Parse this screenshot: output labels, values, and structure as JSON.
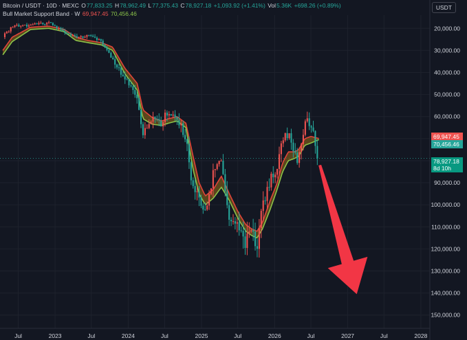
{
  "header": {
    "line1": {
      "symbol": "Bitcoin / USDT · 10D · MEXC",
      "o_label": "O",
      "o_value": "77,833.25",
      "h_label": "H",
      "h_value": "78,962.49",
      "l_label": "L",
      "l_value": "77,375.43",
      "c_label": "C",
      "c_value": "78,927.18",
      "change": "+1,093.92 (+1.41%)",
      "vol_label": "Vol",
      "vol_value": "5.36K",
      "vol_change": "+698.26 (+0.89%)"
    },
    "line2": {
      "indicator": "Bull Market Support Band · W",
      "value_1": "69,947.45",
      "value_2": "70,456.46"
    }
  },
  "currency_button": "USDT",
  "price_tags": {
    "band_upper": "69,947.45",
    "band_lower": "70,456.46",
    "last_price": "78,927.18",
    "countdown": "8d 10h"
  },
  "colors": {
    "background": "#131722",
    "up": "#26a69a",
    "down": "#ef5350",
    "band_red": "#e0443a",
    "band_green": "#8bc34a",
    "band_fill": "#7a5a1a",
    "arrow": "#f23645",
    "axis_text": "#d1d4dc"
  },
  "chart_data": {
    "type": "candlestick",
    "y_axis": {
      "scale": "inverted",
      "range": [
        14000,
        156000
      ],
      "ticks": [
        20000,
        30000,
        40000,
        50000,
        60000,
        70000,
        80000,
        90000,
        100000,
        110000,
        120000,
        130000,
        140000,
        150000
      ],
      "tick_labels": [
        "20,000.00",
        "30,000.00",
        "40,000.00",
        "50,000.00",
        "60,000.00",
        "70,000.00",
        "80,000.00",
        "90,000.00",
        "100,000.00",
        "110,000.00",
        "120,000.00",
        "130,000.00",
        "140,000.00",
        "150,000.00"
      ]
    },
    "x_axis": {
      "range": [
        "2022-04-01",
        "2028-02-15"
      ],
      "ticks": [
        "2022-07-01",
        "2023-01-01",
        "2023-07-01",
        "2024-01-01",
        "2024-07-01",
        "2025-01-01",
        "2025-07-01",
        "2026-01-01",
        "2026-07-01",
        "2027-01-01",
        "2027-07-01",
        "2028-01-01"
      ],
      "tick_labels": [
        "Jul",
        "2023",
        "Jul",
        "2024",
        "Jul",
        "2025",
        "Jul",
        "2026",
        "Jul",
        "2027",
        "Jul",
        "2028"
      ]
    },
    "price_keyframes": [
      [
        "2022-04-15",
        24000
      ],
      [
        "2022-06-01",
        19000
      ],
      [
        "2022-09-01",
        18500
      ],
      [
        "2022-12-01",
        17500
      ],
      [
        "2023-01-01",
        19000
      ],
      [
        "2023-02-15",
        21500
      ],
      [
        "2023-04-15",
        24500
      ],
      [
        "2023-06-15",
        23000
      ],
      [
        "2023-08-20",
        26000
      ],
      [
        "2023-10-15",
        34000
      ],
      [
        "2023-12-15",
        42500
      ],
      [
        "2024-02-15",
        52000
      ],
      [
        "2024-03-15",
        68000
      ],
      [
        "2024-05-01",
        60000
      ],
      [
        "2024-06-15",
        63000
      ],
      [
        "2024-07-20",
        57000
      ],
      [
        "2024-09-01",
        61000
      ],
      [
        "2024-10-15",
        69000
      ],
      [
        "2024-11-20",
        94000
      ],
      [
        "2024-12-20",
        96000
      ],
      [
        "2025-01-20",
        104000
      ],
      [
        "2025-03-01",
        85000
      ],
      [
        "2025-04-10",
        79000
      ],
      [
        "2025-05-20",
        106000
      ],
      [
        "2025-07-01",
        108000
      ],
      [
        "2025-08-10",
        118000
      ],
      [
        "2025-09-10",
        111000
      ],
      [
        "2025-10-05",
        121000
      ],
      [
        "2025-11-01",
        100000
      ],
      [
        "2025-12-10",
        89000
      ],
      [
        "2026-01-10",
        84000
      ],
      [
        "2026-02-10",
        70000
      ],
      [
        "2026-03-10",
        68000
      ],
      [
        "2026-04-10",
        78000
      ],
      [
        "2026-05-01",
        80000
      ],
      [
        "2026-06-01",
        62000
      ],
      [
        "2026-07-01",
        63000
      ],
      [
        "2026-07-20",
        70000
      ],
      [
        "2026-08-10",
        78927
      ]
    ],
    "band_keyframes": [
      [
        "2022-04-15",
        30000,
        32000
      ],
      [
        "2022-06-01",
        24000,
        26000
      ],
      [
        "2022-09-01",
        19500,
        20500
      ],
      [
        "2022-12-01",
        19000,
        20000
      ],
      [
        "2023-02-15",
        20500,
        21500
      ],
      [
        "2023-04-15",
        24000,
        25500
      ],
      [
        "2023-06-15",
        25500,
        26500
      ],
      [
        "2023-08-20",
        26500,
        27500
      ],
      [
        "2023-10-15",
        28500,
        30000
      ],
      [
        "2023-12-15",
        38000,
        40500
      ],
      [
        "2024-02-15",
        45000,
        48000
      ],
      [
        "2024-03-15",
        57000,
        61000
      ],
      [
        "2024-05-01",
        60500,
        63500
      ],
      [
        "2024-06-15",
        62000,
        64000
      ],
      [
        "2024-07-20",
        61000,
        63000
      ],
      [
        "2024-09-01",
        60000,
        62000
      ],
      [
        "2024-10-15",
        63000,
        65000
      ],
      [
        "2024-11-20",
        78000,
        84000
      ],
      [
        "2024-12-20",
        90000,
        95000
      ],
      [
        "2025-01-20",
        96000,
        100000
      ],
      [
        "2025-03-01",
        93000,
        97000
      ],
      [
        "2025-04-10",
        87000,
        92000
      ],
      [
        "2025-05-20",
        95000,
        98000
      ],
      [
        "2025-07-01",
        103000,
        106000
      ],
      [
        "2025-08-10",
        109000,
        112000
      ],
      [
        "2025-09-10",
        111000,
        114000
      ],
      [
        "2025-10-05",
        112000,
        115000
      ],
      [
        "2025-11-01",
        108000,
        111000
      ],
      [
        "2025-12-10",
        98000,
        102000
      ],
      [
        "2026-01-10",
        91000,
        94000
      ],
      [
        "2026-02-10",
        81000,
        85000
      ],
      [
        "2026-03-10",
        76000,
        80000
      ],
      [
        "2026-04-10",
        76000,
        79000
      ],
      [
        "2026-05-01",
        75000,
        78000
      ],
      [
        "2026-06-01",
        70000,
        73000
      ],
      [
        "2026-07-01",
        69000,
        72000
      ],
      [
        "2026-08-10",
        69947,
        70456
      ]
    ],
    "last_price": 78927.18,
    "forecast_arrow": {
      "from": [
        "2026-08-15",
        82000
      ],
      "to": [
        "2027-02-15",
        140500
      ]
    }
  }
}
